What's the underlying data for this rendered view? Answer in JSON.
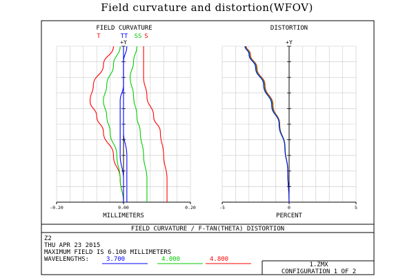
{
  "page_title": "Field curvature and distortion(WFOV)",
  "footer": {
    "banner": "FIELD CURVATURE / F-TAN(THETA) DISTORTION",
    "lines": [
      "Z2",
      "THU APR 23 2015",
      "MAXIMUM FIELD IS 6.100 MILLIMETERS"
    ],
    "wavelengths_label": "WAVELENGTHS:",
    "file": "1.ZMX",
    "config": "CONFIGURATION 1 OF 2"
  },
  "chart_data": [
    {
      "type": "line",
      "title": "FIELD CURVATURE",
      "xlabel": "MILLIMETERS",
      "ylabel": "+Y",
      "xlim": [
        -0.2,
        0.2
      ],
      "ylim": [
        0,
        1
      ],
      "x_tick_labels": [
        "-0.20",
        "0.00",
        "0.20"
      ],
      "curve_labels": [
        "T",
        "TT",
        "SS",
        "S"
      ],
      "grid": true,
      "series": [
        {
          "color": "#ff0000",
          "kind": "T",
          "x": [
            0.0,
            -0.01,
            -0.03,
            -0.06,
            -0.08,
            -0.1,
            -0.09,
            -0.06,
            -0.03
          ],
          "y": [
            0.0,
            0.15,
            0.3,
            0.45,
            0.55,
            0.65,
            0.75,
            0.88,
            1.0
          ]
        },
        {
          "color": "#ff0000",
          "kind": "S",
          "x": [
            0.13,
            0.13,
            0.12,
            0.11,
            0.09,
            0.07,
            0.06,
            0.06,
            0.06
          ],
          "y": [
            0.0,
            0.15,
            0.3,
            0.45,
            0.55,
            0.68,
            0.8,
            0.9,
            1.0
          ]
        },
        {
          "color": "#00cc00",
          "kind": "T",
          "x": [
            0.0,
            -0.01,
            -0.02,
            -0.04,
            -0.05,
            -0.06,
            -0.05,
            -0.03,
            -0.01
          ],
          "y": [
            0.0,
            0.15,
            0.3,
            0.45,
            0.55,
            0.65,
            0.75,
            0.88,
            1.0
          ]
        },
        {
          "color": "#00cc00",
          "kind": "S",
          "x": [
            0.07,
            0.07,
            0.06,
            0.05,
            0.04,
            0.03,
            0.02,
            0.03,
            0.04
          ],
          "y": [
            0.0,
            0.15,
            0.3,
            0.45,
            0.55,
            0.68,
            0.8,
            0.9,
            1.0
          ]
        },
        {
          "color": "#0000ff",
          "kind": "T",
          "x": [
            0.0,
            0.0,
            -0.01,
            -0.01,
            -0.01,
            -0.01,
            0.0,
            0.0,
            0.0
          ],
          "y": [
            0.0,
            0.15,
            0.3,
            0.45,
            0.55,
            0.65,
            0.75,
            0.88,
            1.0
          ]
        },
        {
          "color": "#0000ff",
          "kind": "S",
          "x": [
            0.01,
            0.01,
            0.01,
            0.0,
            0.0,
            0.0,
            0.0,
            0.0,
            0.01
          ],
          "y": [
            0.0,
            0.15,
            0.3,
            0.45,
            0.55,
            0.68,
            0.8,
            0.9,
            1.0
          ]
        }
      ]
    },
    {
      "type": "line",
      "title": "DISTORTION",
      "xlabel": "PERCENT",
      "ylabel": "+Y",
      "xlim": [
        -5,
        5
      ],
      "ylim": [
        0,
        1
      ],
      "x_tick_labels": [
        "-5",
        "0",
        "5"
      ],
      "grid": true,
      "series": [
        {
          "color": "#ff0000",
          "x": [
            0,
            -0.1,
            -0.3,
            -0.7,
            -1.2,
            -1.8,
            -2.4,
            -2.9,
            -3.2
          ],
          "y": [
            0.0,
            0.2,
            0.35,
            0.5,
            0.62,
            0.75,
            0.86,
            0.95,
            1.0
          ]
        },
        {
          "color": "#00cc00",
          "x": [
            0,
            -0.1,
            -0.3,
            -0.72,
            -1.25,
            -1.85,
            -2.45,
            -2.95,
            -3.25
          ],
          "y": [
            0.0,
            0.2,
            0.35,
            0.5,
            0.62,
            0.75,
            0.86,
            0.95,
            1.0
          ]
        },
        {
          "color": "#0000ff",
          "x": [
            0,
            -0.1,
            -0.32,
            -0.75,
            -1.3,
            -1.9,
            -2.5,
            -3.0,
            -3.3
          ],
          "y": [
            0.0,
            0.2,
            0.35,
            0.5,
            0.62,
            0.75,
            0.86,
            0.95,
            1.0
          ]
        }
      ]
    }
  ],
  "wavelengths": [
    {
      "value": "3.700",
      "color": "#0000ff"
    },
    {
      "value": "4.000",
      "color": "#00cc00"
    },
    {
      "value": "4.800",
      "color": "#ff0000"
    }
  ]
}
